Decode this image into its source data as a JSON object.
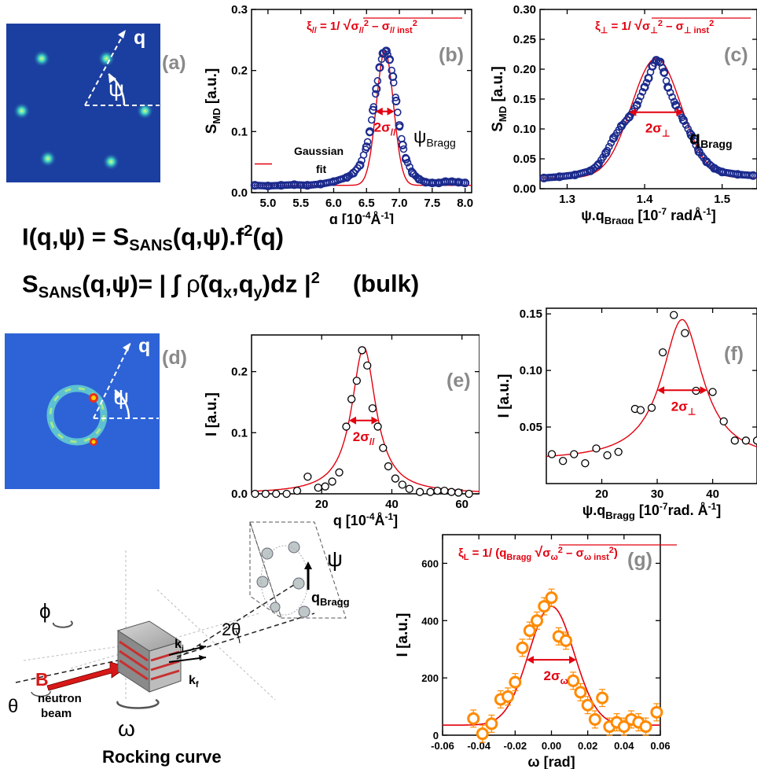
{
  "equations": {
    "line1": {
      "a": "I(q,",
      "b": "ψ",
      "c": ") = S",
      "d": "SANS",
      "e": "(q,",
      "f": "ψ",
      "g": ").f",
      "h": "2",
      "i": "(q)"
    },
    "line2": {
      "a": "S",
      "b": "SANS",
      "c": "(q,",
      "d": "ψ",
      "e": ")= | ∫ ",
      "f": "ρ̃",
      "g": "(q",
      "h": "x",
      "i": ",q",
      "j": "y",
      "k": ")dz |",
      "l": "2",
      "m": "(bulk)"
    }
  },
  "images": {
    "a": {
      "panel": "(a)",
      "q": "q",
      "psi": "ψ",
      "spots": [
        [
          0.23,
          0.22
        ],
        [
          0.65,
          0.22
        ],
        [
          0.1,
          0.55
        ],
        [
          0.9,
          0.55
        ],
        [
          0.27,
          0.85
        ],
        [
          0.68,
          0.87
        ]
      ]
    },
    "d": {
      "panel": "(d)",
      "q": "q",
      "psi": "ψ"
    }
  },
  "chart_data": [
    {
      "id": "b",
      "type": "scatter",
      "panel": "(b)",
      "xlabel": {
        "main": "q [10",
        "sup": "-4",
        "end": "Å",
        "sup2": "-1",
        "close": "]"
      },
      "ylabel": {
        "main": "S",
        "sub": "MD",
        "end": " [a.u.]"
      },
      "xlim": [
        4.75,
        8.1
      ],
      "ylim": [
        0,
        0.3
      ],
      "xticks": [
        5.0,
        5.5,
        6.0,
        6.5,
        7.0,
        7.5,
        8.0
      ],
      "xticklabels": [
        "5.0",
        "5.5",
        "6.0",
        "6.5",
        "7.0",
        "7.5",
        "8.0"
      ],
      "yticks": [
        0.0,
        0.1,
        0.2,
        0.3
      ],
      "yticklabels": [
        "0.0",
        "0.1",
        "0.2",
        "0.3"
      ],
      "formula": {
        "xi": "ξ",
        "xisub": "//",
        "eq": " = 1/ ",
        "s1": "σ",
        "s1sub": "//",
        "s1sup": "2",
        "minus": " – ",
        "s2": "σ",
        "s2sub": "// inst",
        "s2sup": "2"
      },
      "width_label": {
        "main": "2σ",
        "sub": "//"
      },
      "legend": {
        "line1": "Gaussian",
        "line2": "fit"
      },
      "label_right": {
        "main": "ψ",
        "sub": "Bragg"
      },
      "series": [
        {
          "x": [
            4.8,
            5.0,
            5.2,
            5.4,
            5.6,
            5.8,
            6.0,
            6.2,
            6.3,
            6.4,
            6.5,
            6.55,
            6.6,
            6.65,
            6.7,
            6.75,
            6.8,
            6.85,
            6.9,
            6.95,
            7.0,
            7.05,
            7.1,
            7.2,
            7.3,
            7.4,
            7.5,
            7.6,
            7.7,
            7.8,
            7.9,
            8.0
          ],
          "y": [
            0.012,
            0.011,
            0.012,
            0.013,
            0.012,
            0.014,
            0.018,
            0.025,
            0.032,
            0.045,
            0.075,
            0.1,
            0.135,
            0.17,
            0.205,
            0.228,
            0.232,
            0.218,
            0.19,
            0.15,
            0.11,
            0.078,
            0.055,
            0.032,
            0.022,
            0.017,
            0.016,
            0.016,
            0.018,
            0.018,
            0.017,
            0.016
          ]
        }
      ],
      "fit": {
        "type": "gaussian",
        "amp": 0.22,
        "center": 6.78,
        "sigma": 0.13,
        "base": 0.012
      }
    },
    {
      "id": "c",
      "type": "scatter",
      "panel": "(c)",
      "xlabel": {
        "main": "ψ.q",
        "sub": "Bragg",
        "mid": " [10",
        "sup": "-7",
        "end": " radÅ",
        "sup2": "-1",
        "close": "]"
      },
      "ylabel": {
        "main": "S",
        "sub": "MD",
        "end": " [a.u.]"
      },
      "xlim": [
        1.265,
        1.545
      ],
      "ylim": [
        0,
        0.3
      ],
      "xticks": [
        1.3,
        1.4,
        1.5
      ],
      "xticklabels": [
        "1.3",
        "1.4",
        "1.5"
      ],
      "yticks": [
        0.0,
        0.05,
        0.1,
        0.15,
        0.2,
        0.25,
        0.3
      ],
      "yticklabels": [
        "0.00",
        "0.05",
        "0.10",
        "0.15",
        "0.20",
        "0.25",
        "0.30"
      ],
      "formula": {
        "xi": "ξ",
        "xisub": "⊥",
        "eq": " = 1/ ",
        "s1": "σ",
        "s1sub": "⊥",
        "s1sup": "2",
        "minus": " – ",
        "s2": "σ",
        "s2sub": "⊥ inst",
        "s2sup": "2"
      },
      "width_label": {
        "main": "2σ",
        "sub": "⊥"
      },
      "label_right": {
        "main": "q",
        "sub": "Bragg"
      },
      "series": [
        {
          "x": [
            1.27,
            1.29,
            1.31,
            1.33,
            1.34,
            1.35,
            1.36,
            1.37,
            1.38,
            1.39,
            1.4,
            1.405,
            1.41,
            1.415,
            1.42,
            1.425,
            1.43,
            1.44,
            1.45,
            1.46,
            1.47,
            1.48,
            1.49,
            1.5,
            1.52,
            1.54
          ],
          "y": [
            0.018,
            0.02,
            0.023,
            0.03,
            0.04,
            0.06,
            0.085,
            0.105,
            0.12,
            0.14,
            0.17,
            0.185,
            0.205,
            0.215,
            0.212,
            0.195,
            0.17,
            0.14,
            0.115,
            0.09,
            0.062,
            0.045,
            0.034,
            0.028,
            0.024,
            0.022
          ]
        }
      ],
      "fit": {
        "type": "gaussian",
        "amp": 0.2,
        "center": 1.415,
        "sigma": 0.032,
        "base": 0.018
      }
    },
    {
      "id": "e",
      "type": "scatter",
      "panel": "(e)",
      "xlabel": {
        "main": "q [10",
        "sup": "-4",
        "end": "Å",
        "sup2": "-1",
        "close": "]"
      },
      "ylabel": {
        "main": "I [a.u.]"
      },
      "xlim": [
        0,
        65
      ],
      "ylim": [
        0,
        0.26
      ],
      "xticks": [
        20,
        40,
        60
      ],
      "xticklabels": [
        "20",
        "40",
        "60"
      ],
      "yticks": [
        0.0,
        0.1,
        0.2
      ],
      "yticklabels": [
        "0.0",
        "0.1",
        "0.2"
      ],
      "width_label": {
        "main": "2σ",
        "sub": "//"
      },
      "series": [
        {
          "x": [
            1,
            4,
            7,
            10,
            13,
            16,
            19,
            21,
            23,
            25,
            27,
            28.5,
            30,
            31.5,
            33,
            34.5,
            36,
            37.5,
            39,
            41,
            43,
            45,
            48,
            51,
            53,
            55,
            57,
            59,
            62
          ],
          "y": [
            0.0,
            0.0,
            0.0,
            0.0,
            0.005,
            0.028,
            0.01,
            0.012,
            0.02,
            0.035,
            0.11,
            0.155,
            0.185,
            0.235,
            0.21,
            0.14,
            0.11,
            0.075,
            0.045,
            0.025,
            0.015,
            0.008,
            0.003,
            0.003,
            0.005,
            0.005,
            0.003,
            0.002,
            0.0
          ]
        }
      ],
      "fit": {
        "type": "lorentzian",
        "amp": 0.24,
        "center": 32,
        "gamma": 4.2,
        "base": 0.0
      }
    },
    {
      "id": "f",
      "type": "scatter",
      "panel": "(f)",
      "xlabel": {
        "main": "ψ.q",
        "sub": "Bragg",
        "mid": " [10",
        "sup": "-7",
        "end": "rad. Å",
        "sup2": "-1",
        "close": "]"
      },
      "ylabel": {
        "main": "I [a.u.]"
      },
      "xlim": [
        10,
        48
      ],
      "ylim": [
        0.0,
        0.155
      ],
      "xticks": [
        20,
        30,
        40
      ],
      "xticklabels": [
        "20",
        "30",
        "40"
      ],
      "yticks": [
        0.05,
        0.1,
        0.15
      ],
      "yticklabels": [
        "0.05",
        "0.10",
        "0.15"
      ],
      "width_label": {
        "main": "2σ",
        "sub": "⊥"
      },
      "series": [
        {
          "x": [
            11,
            13,
            15,
            17,
            19,
            21,
            23,
            26,
            27,
            29,
            31,
            33,
            35,
            37,
            40,
            42,
            44,
            46,
            48
          ],
          "y": [
            0.026,
            0.02,
            0.026,
            0.018,
            0.031,
            0.025,
            0.028,
            0.066,
            0.065,
            0.067,
            0.116,
            0.149,
            0.133,
            0.082,
            0.081,
            0.055,
            0.038,
            0.038,
            0.038
          ]
        }
      ],
      "fit": {
        "type": "lorentzian",
        "amp": 0.125,
        "center": 34.5,
        "gamma": 4.5,
        "base": 0.02
      }
    },
    {
      "id": "g",
      "type": "scatter",
      "panel": "(g)",
      "xlabel": {
        "main": "ω [rad]"
      },
      "ylabel": {
        "main": "I [a.u.]"
      },
      "xlim": [
        -0.06,
        0.06
      ],
      "ylim": [
        0,
        700
      ],
      "xticks": [
        -0.06,
        -0.04,
        -0.02,
        0.0,
        0.02,
        0.04,
        0.06
      ],
      "xticklabels": [
        "-0.06",
        "-0.04",
        "-0.02",
        "0.00",
        "0.02",
        "0.04",
        "0.06"
      ],
      "yticks": [
        0,
        200,
        400,
        600
      ],
      "yticklabels": [
        "0",
        "200",
        "400",
        "600"
      ],
      "formula": {
        "xi": "ξ",
        "xisub": "L",
        "eq": " = 1/ (q",
        "qsub": "Bragg",
        "s1": "σ",
        "s1sub": "ω",
        "s1sup": "2",
        "minus": " – ",
        "s2": "σ",
        "s2sub": "ω inst",
        "s2sup": "2",
        "close": ")"
      },
      "width_label": {
        "main": "2σ",
        "sub": "ω"
      },
      "series": [
        {
          "x": [
            -0.043,
            -0.038,
            -0.033,
            -0.028,
            -0.024,
            -0.02,
            -0.016,
            -0.012,
            -0.008,
            -0.004,
            0.0,
            0.004,
            0.008,
            0.012,
            0.016,
            0.02,
            0.024,
            0.028,
            0.032,
            0.036,
            0.04,
            0.044,
            0.048,
            0.052,
            0.058
          ],
          "y": [
            58,
            5,
            40,
            125,
            135,
            185,
            305,
            365,
            400,
            450,
            480,
            345,
            330,
            190,
            150,
            105,
            55,
            130,
            30,
            45,
            30,
            55,
            45,
            30,
            80
          ],
          "err": 30
        }
      ],
      "fit": {
        "type": "gaussian",
        "amp": 415,
        "center": 0.0,
        "sigma": 0.0125,
        "base": 35
      }
    }
  ],
  "schematic": {
    "title": "Rocking curve",
    "phi": "ϕ",
    "B": "B",
    "theta": "θ",
    "omega": "ω",
    "beam1": "neutron",
    "beam2": "beam",
    "ki": "k",
    "kisub": "i",
    "kf": "k",
    "kfsub": "f",
    "twotheta": "2θ",
    "psi": "ψ",
    "qbragg": "q",
    "qbraggsub": "Bragg"
  },
  "colors": {
    "red": "#e3000f",
    "blue": "#1b2a8c",
    "orange": "#ff8a00",
    "detector": "#1b3fa0"
  }
}
